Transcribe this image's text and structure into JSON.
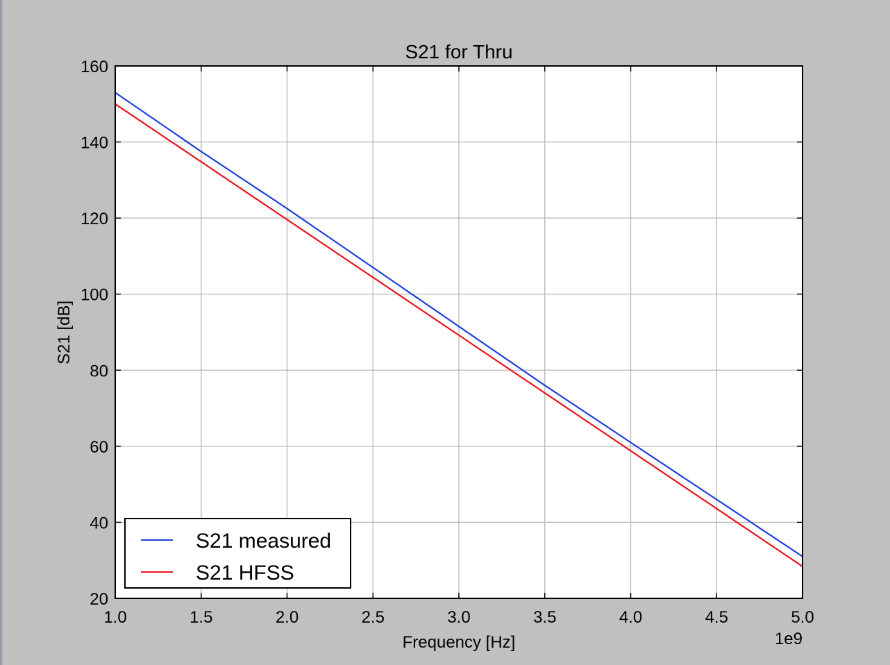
{
  "chart_data": {
    "type": "line",
    "title": "S21 for Thru",
    "xlabel": "Frequency [Hz]",
    "ylabel": "S21 [dB]",
    "x_offset_label": "1e9",
    "xlim": [
      1.0,
      5.0
    ],
    "ylim": [
      20,
      160
    ],
    "xticks": [
      "1.0",
      "1.5",
      "2.0",
      "2.5",
      "3.0",
      "3.5",
      "4.0",
      "4.5",
      "5.0"
    ],
    "yticks": [
      "20",
      "40",
      "60",
      "80",
      "100",
      "120",
      "140",
      "160"
    ],
    "grid": true,
    "legend_position": "lower-left",
    "series": [
      {
        "name": "S21 measured",
        "color": "#1f3fe0",
        "x": [
          1.0,
          1.5,
          2.0,
          2.5,
          3.0,
          3.5,
          4.0,
          4.5,
          5.0
        ],
        "y": [
          153.0,
          137.5,
          122.5,
          107.0,
          91.5,
          76.0,
          61.0,
          46.0,
          31.0
        ]
      },
      {
        "name": "S21 HFSS",
        "color": "#e8141c",
        "x": [
          1.0,
          1.5,
          2.0,
          2.5,
          3.0,
          3.5,
          4.0,
          4.5,
          5.0
        ],
        "y": [
          150.0,
          134.8,
          119.6,
          104.4,
          89.2,
          74.0,
          58.8,
          43.6,
          28.4
        ]
      }
    ]
  }
}
